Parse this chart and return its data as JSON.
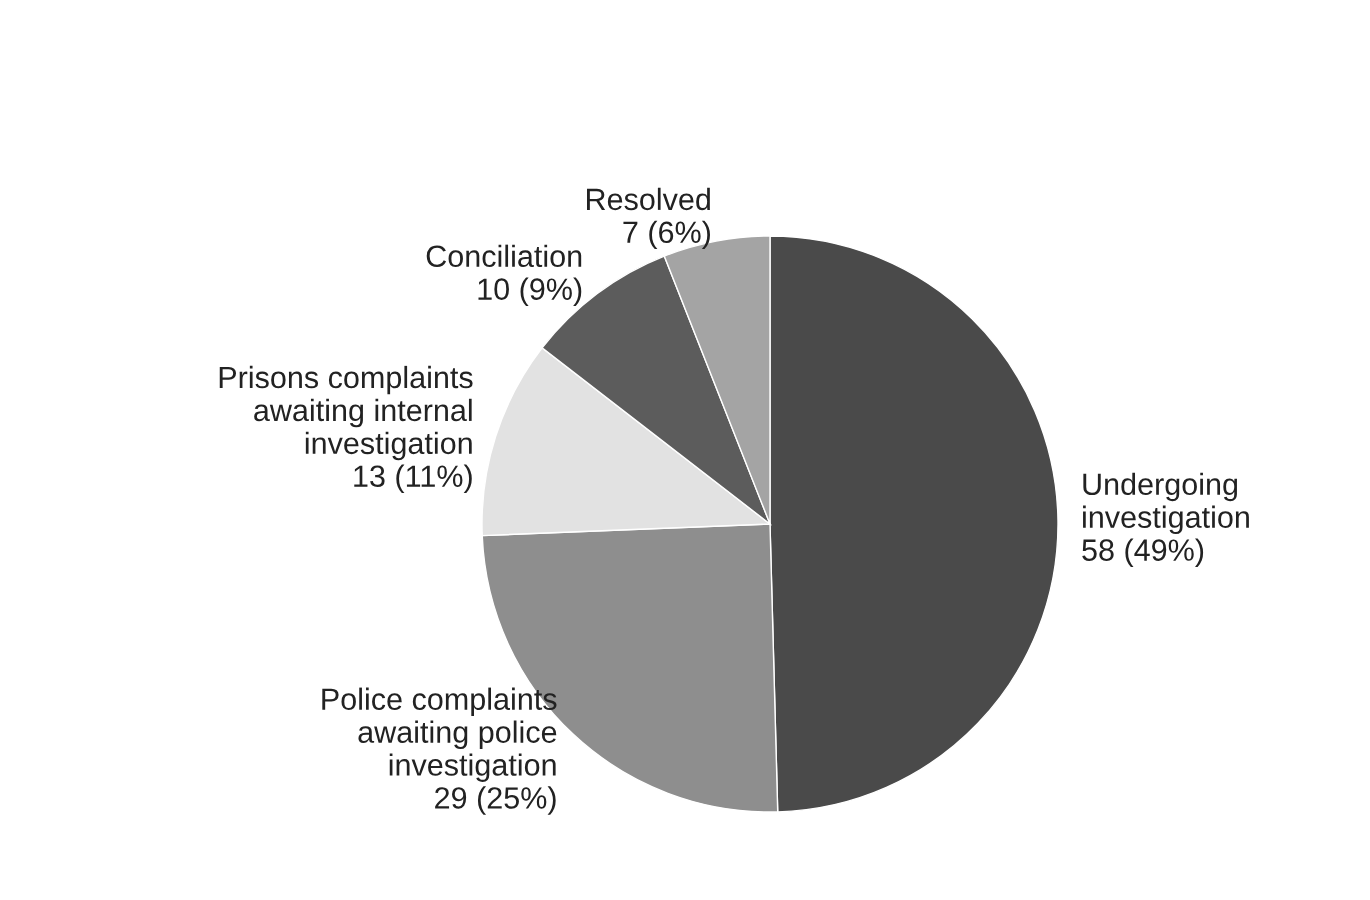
{
  "chart_data": {
    "type": "pie",
    "categories": [
      "Undergoing\ninvestigation",
      "Police complaints\nawaiting police\ninvestigation",
      "Prisons complaints\nawaiting internal\ninvestigation",
      "Conciliation",
      "Resolved"
    ],
    "values": [
      58,
      29,
      13,
      10,
      7
    ],
    "value_labels": [
      "58 (49%)",
      "29 (25%)",
      "13 (11%)",
      "10 (9%)",
      "7 (6%)"
    ],
    "colors": [
      "#4a4a4a",
      "#8e8e8e",
      "#e2e2e2",
      "#5c5c5c",
      "#a4a4a4"
    ]
  }
}
